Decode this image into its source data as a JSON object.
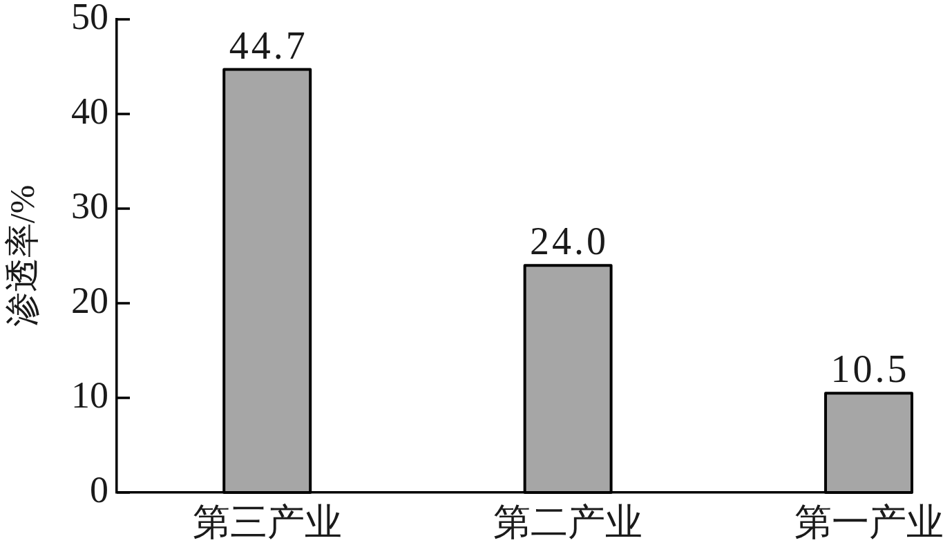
{
  "chart_data": {
    "type": "bar",
    "ylabel": "渗透率/%",
    "categories": [
      "第三产业",
      "第二产业",
      "第一产业"
    ],
    "values": [
      44.7,
      24.0,
      10.5
    ],
    "value_labels": [
      "44.7",
      "24.0",
      "10.5"
    ],
    "color": "#a6a6a6",
    "ylim": [
      0,
      50
    ],
    "yticks": [
      0,
      10,
      20,
      30,
      40,
      50
    ]
  }
}
